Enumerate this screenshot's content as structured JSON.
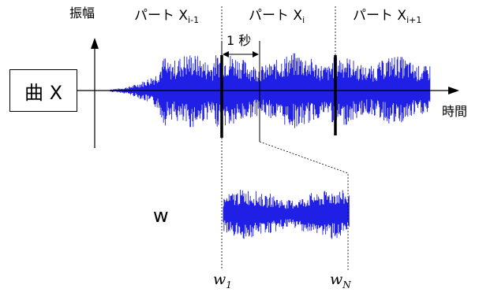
{
  "labels": {
    "amplitude": "振幅",
    "time": "時間",
    "song": "曲 X",
    "one_second": "1 秒",
    "window_symbol": "w",
    "part_prefix": "パート X",
    "part_prev_sub": "i-1",
    "part_curr_sub": "i",
    "part_next_sub": "i+1",
    "w_first_base": "w",
    "w_first_sub": "1",
    "w_last_base": "w",
    "w_last_sub": "N"
  },
  "colors": {
    "waveform": "#1f1fe6",
    "ink": "#000000"
  }
}
